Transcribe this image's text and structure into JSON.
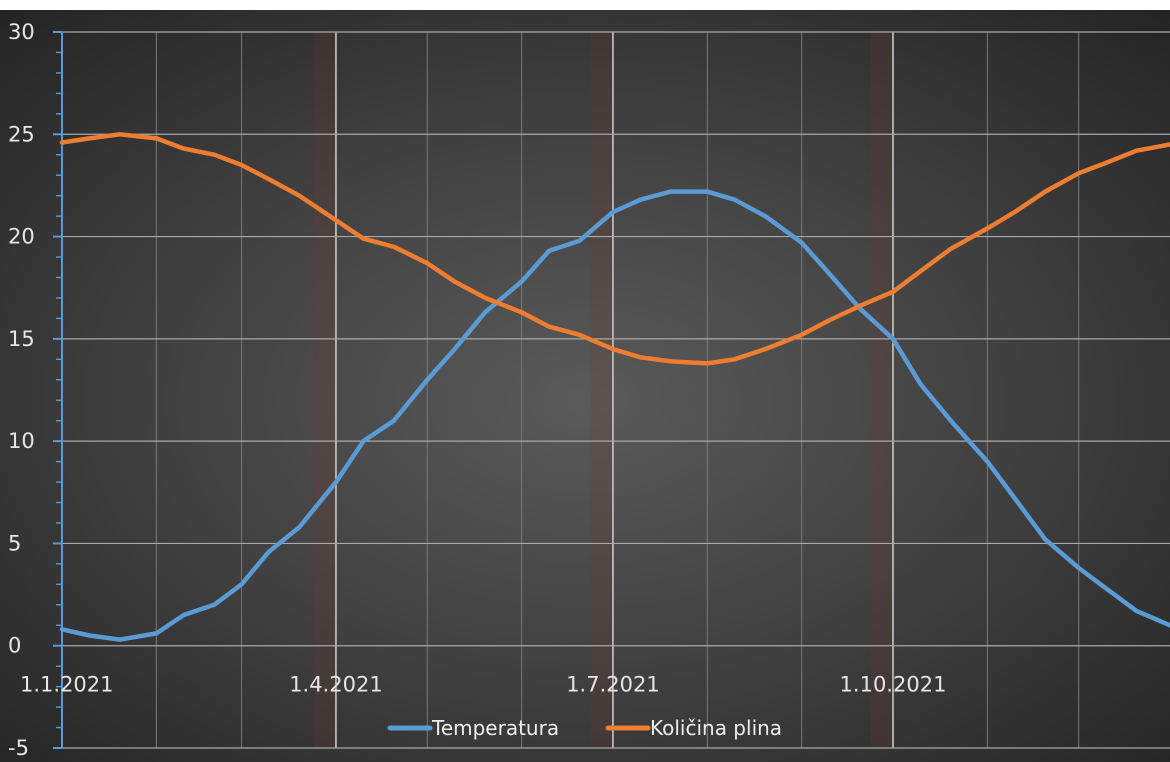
{
  "chart_data": {
    "type": "line",
    "title": "",
    "xlabel": "",
    "ylabel": "",
    "xlim": [
      "2021-01-01",
      "2021-12-31"
    ],
    "ylim": [
      -5,
      30
    ],
    "y_major_ticks": [
      30,
      25,
      20,
      15,
      10,
      5,
      0,
      -5
    ],
    "x_tick_labels": [
      "1.1.2021",
      "1.4.2021",
      "1.7.2021",
      "1.10.2021"
    ],
    "x_tick_dates": [
      "2021-01-01",
      "2021-04-01",
      "2021-07-01",
      "2021-10-01"
    ],
    "grid": true,
    "legend_position": "bottom",
    "series": [
      {
        "name": "Temperatura",
        "color": "#5b9bd5",
        "points": [
          [
            "2021-01-01",
            0.8
          ],
          [
            "2021-01-10",
            0.5
          ],
          [
            "2021-01-20",
            0.3
          ],
          [
            "2021-02-01",
            0.6
          ],
          [
            "2021-02-10",
            1.5
          ],
          [
            "2021-02-20",
            2.0
          ],
          [
            "2021-03-01",
            3.0
          ],
          [
            "2021-03-10",
            4.6
          ],
          [
            "2021-03-20",
            5.8
          ],
          [
            "2021-04-01",
            8.0
          ],
          [
            "2021-04-10",
            10.0
          ],
          [
            "2021-04-20",
            11.0
          ],
          [
            "2021-05-01",
            13.0
          ],
          [
            "2021-05-10",
            14.5
          ],
          [
            "2021-05-20",
            16.3
          ],
          [
            "2021-06-01",
            17.8
          ],
          [
            "2021-06-10",
            19.3
          ],
          [
            "2021-06-20",
            19.8
          ],
          [
            "2021-07-01",
            21.2
          ],
          [
            "2021-07-10",
            21.8
          ],
          [
            "2021-07-20",
            22.2
          ],
          [
            "2021-08-01",
            22.2
          ],
          [
            "2021-08-10",
            21.8
          ],
          [
            "2021-08-20",
            21.0
          ],
          [
            "2021-09-01",
            19.7
          ],
          [
            "2021-09-10",
            18.2
          ],
          [
            "2021-09-20",
            16.5
          ],
          [
            "2021-10-01",
            15.0
          ],
          [
            "2021-10-10",
            12.8
          ],
          [
            "2021-10-20",
            11.0
          ],
          [
            "2021-11-01",
            9.0
          ],
          [
            "2021-11-10",
            7.2
          ],
          [
            "2021-11-20",
            5.2
          ],
          [
            "2021-12-01",
            3.8
          ],
          [
            "2021-12-10",
            2.8
          ],
          [
            "2021-12-20",
            1.7
          ],
          [
            "2021-12-31",
            1.0
          ]
        ]
      },
      {
        "name": "Količina plina",
        "color": "#ed7d31",
        "points": [
          [
            "2021-01-01",
            24.6
          ],
          [
            "2021-01-10",
            24.8
          ],
          [
            "2021-01-20",
            25.0
          ],
          [
            "2021-02-01",
            24.8
          ],
          [
            "2021-02-10",
            24.3
          ],
          [
            "2021-02-20",
            24.0
          ],
          [
            "2021-03-01",
            23.5
          ],
          [
            "2021-03-10",
            22.8
          ],
          [
            "2021-03-20",
            22.0
          ],
          [
            "2021-04-01",
            20.8
          ],
          [
            "2021-04-10",
            19.9
          ],
          [
            "2021-04-20",
            19.5
          ],
          [
            "2021-05-01",
            18.7
          ],
          [
            "2021-05-10",
            17.8
          ],
          [
            "2021-05-20",
            17.0
          ],
          [
            "2021-06-01",
            16.3
          ],
          [
            "2021-06-10",
            15.6
          ],
          [
            "2021-06-20",
            15.2
          ],
          [
            "2021-07-01",
            14.5
          ],
          [
            "2021-07-10",
            14.1
          ],
          [
            "2021-07-20",
            13.9
          ],
          [
            "2021-08-01",
            13.8
          ],
          [
            "2021-08-10",
            14.0
          ],
          [
            "2021-08-20",
            14.5
          ],
          [
            "2021-09-01",
            15.2
          ],
          [
            "2021-09-10",
            15.9
          ],
          [
            "2021-09-20",
            16.6
          ],
          [
            "2021-10-01",
            17.3
          ],
          [
            "2021-10-10",
            18.3
          ],
          [
            "2021-10-20",
            19.4
          ],
          [
            "2021-11-01",
            20.4
          ],
          [
            "2021-11-10",
            21.2
          ],
          [
            "2021-11-20",
            22.2
          ],
          [
            "2021-12-01",
            23.1
          ],
          [
            "2021-12-10",
            23.6
          ],
          [
            "2021-12-20",
            24.2
          ],
          [
            "2021-12-31",
            24.5
          ]
        ]
      }
    ]
  }
}
